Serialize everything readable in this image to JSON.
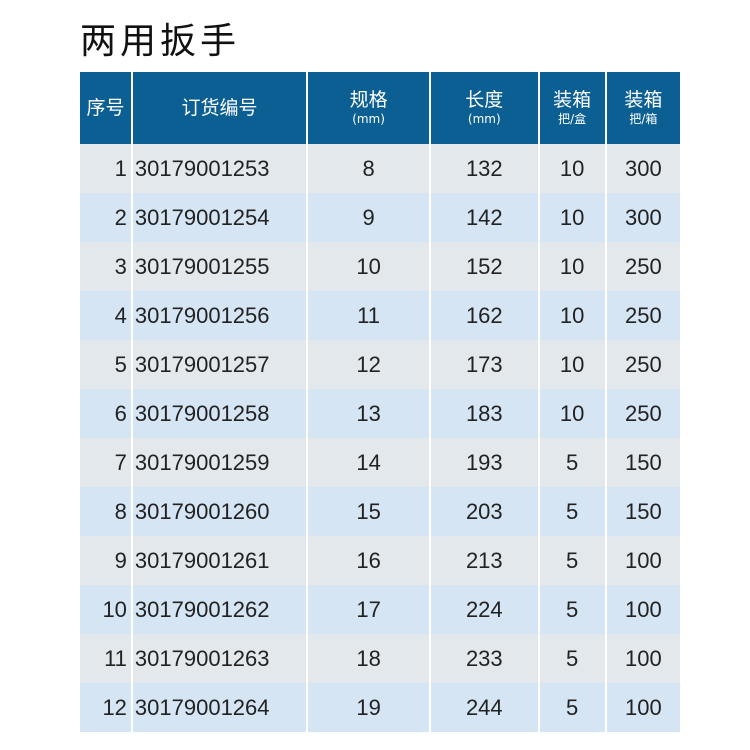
{
  "title": "两用扳手",
  "colors": {
    "header": "#0b5f92",
    "row_odd": "#e3e8ed",
    "row_even": "#d5e5f4"
  },
  "headers": [
    {
      "main": "序号",
      "sub": ""
    },
    {
      "main": "订货编号",
      "sub": ""
    },
    {
      "main": "规格",
      "sub": "(mm)"
    },
    {
      "main": "长度",
      "sub": "(mm)"
    },
    {
      "main": "装箱",
      "sub": "把/盒"
    },
    {
      "main": "装箱",
      "sub": "把/箱"
    }
  ],
  "rows": [
    [
      "1",
      "30179001253",
      "8",
      "132",
      "10",
      "300"
    ],
    [
      "2",
      "30179001254",
      "9",
      "142",
      "10",
      "300"
    ],
    [
      "3",
      "30179001255",
      "10",
      "152",
      "10",
      "250"
    ],
    [
      "4",
      "30179001256",
      "11",
      "162",
      "10",
      "250"
    ],
    [
      "5",
      "30179001257",
      "12",
      "173",
      "10",
      "250"
    ],
    [
      "6",
      "30179001258",
      "13",
      "183",
      "10",
      "250"
    ],
    [
      "7",
      "30179001259",
      "14",
      "193",
      "5",
      "150"
    ],
    [
      "8",
      "30179001260",
      "15",
      "203",
      "5",
      "150"
    ],
    [
      "9",
      "30179001261",
      "16",
      "213",
      "5",
      "100"
    ],
    [
      "10",
      "30179001262",
      "17",
      "224",
      "5",
      "100"
    ],
    [
      "11",
      "30179001263",
      "18",
      "233",
      "5",
      "100"
    ],
    [
      "12",
      "30179001264",
      "19",
      "244",
      "5",
      "100"
    ]
  ]
}
